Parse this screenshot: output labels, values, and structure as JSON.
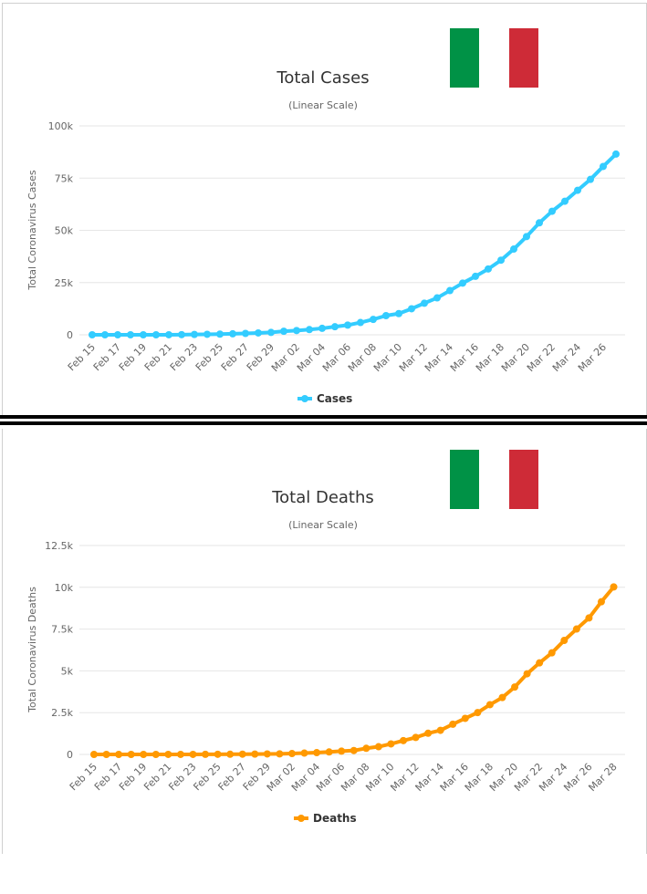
{
  "flag": {
    "name": "italy-flag",
    "colors": [
      "#009246",
      "#ffffff",
      "#ce2b37"
    ]
  },
  "chart_data": [
    {
      "type": "line",
      "title": "Total Cases",
      "subtitle": "(Linear Scale)",
      "ylabel": "Total Coronavirus Cases",
      "xlabel": "",
      "ylim": [
        0,
        100000
      ],
      "yticks": [
        "0",
        "25k",
        "50k",
        "75k",
        "100k"
      ],
      "ytick_values": [
        0,
        25000,
        50000,
        75000,
        100000
      ],
      "xtick_labels": [
        "Feb 15",
        "Feb 17",
        "Feb 19",
        "Feb 21",
        "Feb 23",
        "Feb 25",
        "Feb 27",
        "Feb 29",
        "Mar 02",
        "Mar 04",
        "Mar 06",
        "Mar 08",
        "Mar 10",
        "Mar 12",
        "Mar 14",
        "Mar 16",
        "Mar 18",
        "Mar 20",
        "Mar 22",
        "Mar 24",
        "Mar 26"
      ],
      "grid": true,
      "legend": "bottom-center",
      "series": [
        {
          "name": "Cases",
          "color": "#33ccff",
          "x": [
            "Feb 15",
            "Feb 16",
            "Feb 17",
            "Feb 18",
            "Feb 19",
            "Feb 20",
            "Feb 21",
            "Feb 22",
            "Feb 23",
            "Feb 24",
            "Feb 25",
            "Feb 26",
            "Feb 27",
            "Feb 28",
            "Feb 29",
            "Mar 01",
            "Mar 02",
            "Mar 03",
            "Mar 04",
            "Mar 05",
            "Mar 06",
            "Mar 07",
            "Mar 08",
            "Mar 09",
            "Mar 10",
            "Mar 11",
            "Mar 12",
            "Mar 13",
            "Mar 14",
            "Mar 15",
            "Mar 16",
            "Mar 17",
            "Mar 18",
            "Mar 19",
            "Mar 20",
            "Mar 21",
            "Mar 22",
            "Mar 23",
            "Mar 24",
            "Mar 25",
            "Mar 26",
            "Mar 27"
          ],
          "values": [
            3,
            3,
            3,
            3,
            3,
            3,
            20,
            79,
            157,
            229,
            323,
            470,
            655,
            889,
            1128,
            1694,
            2036,
            2502,
            3089,
            3858,
            4636,
            5883,
            7375,
            9172,
            10149,
            12462,
            15113,
            17660,
            21157,
            24747,
            27980,
            31506,
            35713,
            41035,
            47021,
            53578,
            59138,
            63927,
            69176,
            74386,
            80589,
            86498
          ]
        }
      ]
    },
    {
      "type": "line",
      "title": "Total Deaths",
      "subtitle": "(Linear Scale)",
      "ylabel": "Total Coronavirus Deaths",
      "xlabel": "",
      "ylim": [
        0,
        12500
      ],
      "yticks": [
        "0",
        "2.5k",
        "5k",
        "7.5k",
        "10k",
        "12.5k"
      ],
      "ytick_values": [
        0,
        2500,
        5000,
        7500,
        10000,
        12500
      ],
      "xtick_labels": [
        "Feb 15",
        "Feb 17",
        "Feb 19",
        "Feb 21",
        "Feb 23",
        "Feb 25",
        "Feb 27",
        "Feb 29",
        "Mar 02",
        "Mar 04",
        "Mar 06",
        "Mar 08",
        "Mar 10",
        "Mar 12",
        "Mar 14",
        "Mar 16",
        "Mar 18",
        "Mar 20",
        "Mar 22",
        "Mar 24",
        "Mar 26",
        "Mar 28"
      ],
      "grid": true,
      "legend": "bottom-center",
      "series": [
        {
          "name": "Deaths",
          "color": "#ff9900",
          "x": [
            "Feb 15",
            "Feb 16",
            "Feb 17",
            "Feb 18",
            "Feb 19",
            "Feb 20",
            "Feb 21",
            "Feb 22",
            "Feb 23",
            "Feb 24",
            "Feb 25",
            "Feb 26",
            "Feb 27",
            "Feb 28",
            "Feb 29",
            "Mar 01",
            "Mar 02",
            "Mar 03",
            "Mar 04",
            "Mar 05",
            "Mar 06",
            "Mar 07",
            "Mar 08",
            "Mar 09",
            "Mar 10",
            "Mar 11",
            "Mar 12",
            "Mar 13",
            "Mar 14",
            "Mar 15",
            "Mar 16",
            "Mar 17",
            "Mar 18",
            "Mar 19",
            "Mar 20",
            "Mar 21",
            "Mar 22",
            "Mar 23",
            "Mar 24",
            "Mar 25",
            "Mar 26",
            "Mar 27",
            "Mar 28"
          ],
          "values": [
            0,
            0,
            0,
            0,
            0,
            0,
            1,
            2,
            3,
            7,
            10,
            12,
            17,
            21,
            29,
            34,
            52,
            79,
            107,
            148,
            197,
            233,
            366,
            463,
            631,
            827,
            1016,
            1266,
            1441,
            1809,
            2158,
            2503,
            2978,
            3405,
            4032,
            4825,
            5476,
            6077,
            6820,
            7503,
            8165,
            9134,
            10023
          ]
        }
      ]
    }
  ]
}
